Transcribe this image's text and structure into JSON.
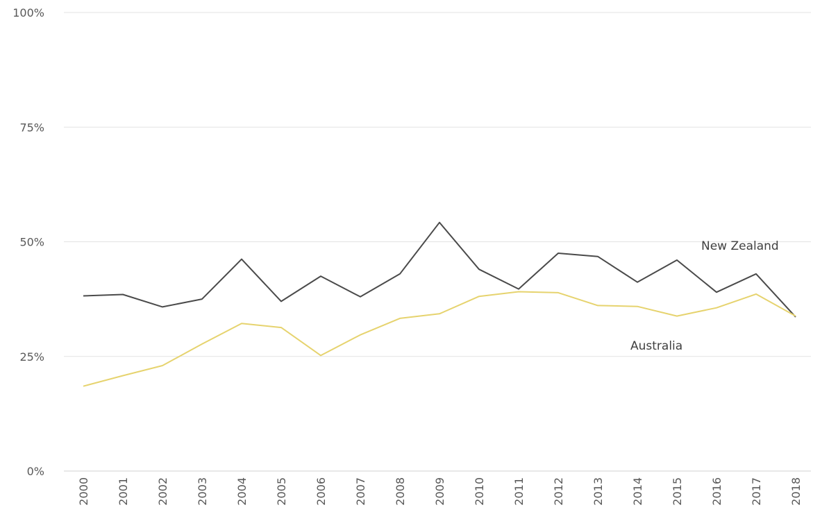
{
  "chart_data": {
    "type": "line",
    "x": [
      "2000",
      "2001",
      "2002",
      "2003",
      "2004",
      "2005",
      "2006",
      "2007",
      "2008",
      "2009",
      "2010",
      "2011",
      "2012",
      "2013",
      "2014",
      "2015",
      "2016",
      "2017",
      "2018"
    ],
    "yticks": [
      "0%",
      "25%",
      "50%",
      "75%",
      "100%"
    ],
    "ylim": [
      0,
      100
    ],
    "grid": true,
    "series": [
      {
        "name": "New Zealand",
        "color": "#4a4a4a",
        "values": [
          38.2,
          38.5,
          35.8,
          37.5,
          46.2,
          37.0,
          42.5,
          38.0,
          43.0,
          54.2,
          44.0,
          39.7,
          47.5,
          46.8,
          41.2,
          46.0,
          39.0,
          43.0,
          33.6
        ]
      },
      {
        "name": "Australia",
        "color": "#e6d36e",
        "values": [
          18.5,
          20.8,
          23.0,
          27.7,
          32.2,
          31.3,
          25.2,
          29.7,
          33.3,
          34.3,
          38.1,
          39.1,
          38.9,
          36.1,
          35.9,
          33.8,
          35.6,
          38.6,
          33.8
        ]
      }
    ]
  }
}
